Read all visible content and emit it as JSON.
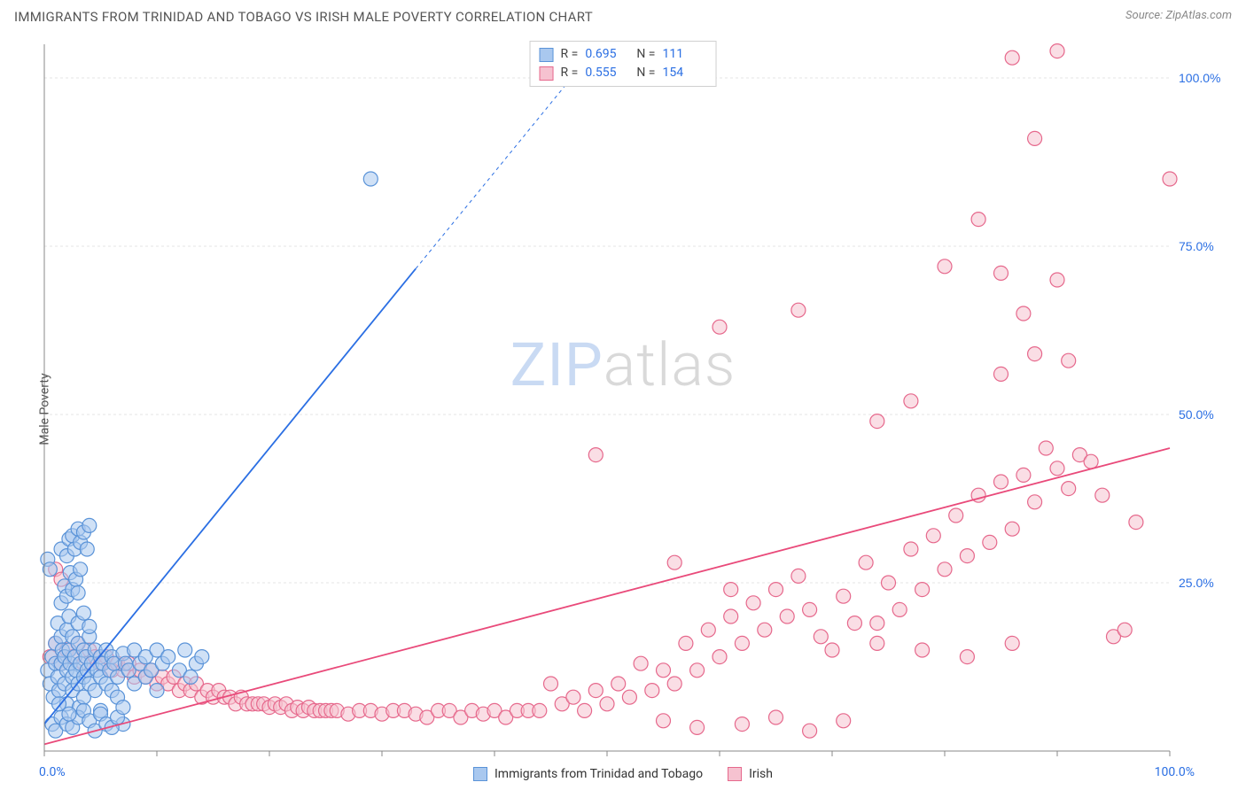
{
  "header": {
    "title": "IMMIGRANTS FROM TRINIDAD AND TOBAGO VS IRISH MALE POVERTY CORRELATION CHART",
    "source_label": "Source: ",
    "source_name": "ZipAtlas.com"
  },
  "watermark": {
    "zip": "ZIP",
    "atlas": "atlas"
  },
  "chart": {
    "type": "scatter",
    "xlim": [
      0,
      100
    ],
    "ylim": [
      0,
      105
    ],
    "xtick_positions": [
      0,
      10,
      20,
      30,
      40,
      50,
      60,
      70,
      80,
      90,
      100
    ],
    "ytick_positions": [
      0,
      25,
      50,
      75,
      100
    ],
    "ytick_labels": [
      "",
      "25.0%",
      "50.0%",
      "75.0%",
      "100.0%"
    ],
    "x_label_min": "0.0%",
    "x_label_max": "100.0%",
    "y_axis_label": "Male Poverty",
    "background_color": "#ffffff",
    "grid_color": "#e4e4e4",
    "grid_dash": "3,3",
    "axis_line_color": "#888888",
    "marker_radius": 8,
    "marker_stroke_width": 1.2,
    "series": [
      {
        "id": "trinidad",
        "name": "Immigrants from Trinidad and Tobago",
        "fill_color": "#a9c8ef",
        "fill_opacity": 0.55,
        "stroke_color": "#5a93d8",
        "r_value": "0.695",
        "n_value": "111",
        "trend": {
          "slope": 2.05,
          "intercept": 4,
          "solid_xmax": 33,
          "dash_xmax": 48,
          "color": "#2b6fe3",
          "width": 1.8
        },
        "points": [
          [
            0.3,
            12
          ],
          [
            0.5,
            10
          ],
          [
            0.7,
            14
          ],
          [
            0.8,
            8
          ],
          [
            1,
            13
          ],
          [
            1,
            16
          ],
          [
            1.2,
            11
          ],
          [
            1.2,
            19
          ],
          [
            1.3,
            9
          ],
          [
            1.5,
            13
          ],
          [
            1.5,
            17
          ],
          [
            1.5,
            22
          ],
          [
            1.6,
            15
          ],
          [
            1.8,
            10
          ],
          [
            1.8,
            14
          ],
          [
            2,
            12
          ],
          [
            2,
            18
          ],
          [
            2,
            7
          ],
          [
            2.2,
            15
          ],
          [
            2.2,
            20
          ],
          [
            2.3,
            13
          ],
          [
            2.5,
            11
          ],
          [
            2.5,
            17
          ],
          [
            2.5,
            9
          ],
          [
            2.7,
            14
          ],
          [
            2.8,
            12
          ],
          [
            3,
            16
          ],
          [
            3,
            10
          ],
          [
            3,
            19
          ],
          [
            3.1,
            6.5
          ],
          [
            3.2,
            13
          ],
          [
            3.5,
            15
          ],
          [
            3.5,
            11
          ],
          [
            3.5,
            8
          ],
          [
            3.7,
            14
          ],
          [
            3.8,
            12
          ],
          [
            4,
            17
          ],
          [
            4,
            10
          ],
          [
            4.2,
            13
          ],
          [
            4.5,
            15
          ],
          [
            4.5,
            9
          ],
          [
            4.7,
            12
          ],
          [
            5,
            14
          ],
          [
            5,
            11
          ],
          [
            5,
            6
          ],
          [
            5.2,
            13
          ],
          [
            5.5,
            15
          ],
          [
            5.5,
            10
          ],
          [
            5.8,
            12
          ],
          [
            6,
            14
          ],
          [
            6,
            9
          ],
          [
            6.2,
            13
          ],
          [
            6.5,
            11
          ],
          [
            6.5,
            8
          ],
          [
            7,
            14.5
          ],
          [
            7,
            4
          ],
          [
            7.2,
            13
          ],
          [
            7.5,
            12
          ],
          [
            8,
            15
          ],
          [
            8,
            10
          ],
          [
            8.5,
            13
          ],
          [
            9,
            14
          ],
          [
            9,
            11
          ],
          [
            9.5,
            12
          ],
          [
            10,
            15
          ],
          [
            10,
            9
          ],
          [
            10.5,
            13
          ],
          [
            11,
            14
          ],
          [
            12,
            12
          ],
          [
            12.5,
            15
          ],
          [
            13,
            11
          ],
          [
            13.5,
            13
          ],
          [
            14,
            14
          ],
          [
            1.8,
            24.5
          ],
          [
            2,
            23
          ],
          [
            2.3,
            26.5
          ],
          [
            2.5,
            24
          ],
          [
            2.8,
            25.5
          ],
          [
            3,
            23.5
          ],
          [
            3.2,
            27
          ],
          [
            1.5,
            30
          ],
          [
            2,
            29
          ],
          [
            2.2,
            31.5
          ],
          [
            2.5,
            32
          ],
          [
            2.7,
            30
          ],
          [
            3,
            33
          ],
          [
            3.2,
            31
          ],
          [
            3.5,
            32.5
          ],
          [
            3.8,
            30
          ],
          [
            4,
            33.5
          ],
          [
            0.7,
            4
          ],
          [
            1,
            3
          ],
          [
            1.5,
            5
          ],
          [
            2,
            4
          ],
          [
            2.5,
            3.5
          ],
          [
            3,
            5
          ],
          [
            3.5,
            6
          ],
          [
            4,
            4.5
          ],
          [
            4.5,
            3
          ],
          [
            5,
            5.5
          ],
          [
            5.5,
            4
          ],
          [
            6,
            3.5
          ],
          [
            6.5,
            5
          ],
          [
            7,
            6.5
          ],
          [
            0.3,
            28.5
          ],
          [
            0.5,
            27
          ],
          [
            1.3,
            7
          ],
          [
            2.2,
            5.5
          ],
          [
            3.5,
            20.5
          ],
          [
            4,
            18.5
          ],
          [
            29,
            85
          ]
        ]
      },
      {
        "id": "irish",
        "name": "Irish",
        "fill_color": "#f6c2d0",
        "fill_opacity": 0.55,
        "stroke_color": "#e6688c",
        "r_value": "0.555",
        "n_value": "154",
        "trend": {
          "slope": 0.44,
          "intercept": 1,
          "solid_xmax": 100,
          "dash_xmax": 100,
          "color": "#e94a7a",
          "width": 1.8
        },
        "points": [
          [
            0.5,
            14
          ],
          [
            1,
            16
          ],
          [
            1.5,
            13
          ],
          [
            2,
            15
          ],
          [
            2.5,
            14
          ],
          [
            3,
            16
          ],
          [
            3.5,
            13
          ],
          [
            4,
            15
          ],
          [
            4.5,
            14
          ],
          [
            5,
            13
          ],
          [
            5.5,
            14
          ],
          [
            6,
            12
          ],
          [
            6.5,
            13
          ],
          [
            7,
            12
          ],
          [
            7.5,
            13
          ],
          [
            8,
            11
          ],
          [
            8.5,
            12
          ],
          [
            9,
            11
          ],
          [
            9.5,
            12
          ],
          [
            10,
            10
          ],
          [
            10.5,
            11
          ],
          [
            11,
            10
          ],
          [
            11.5,
            11
          ],
          [
            12,
            9
          ],
          [
            12.5,
            10
          ],
          [
            13,
            9
          ],
          [
            13.5,
            10
          ],
          [
            14,
            8
          ],
          [
            14.5,
            9
          ],
          [
            15,
            8
          ],
          [
            15.5,
            9
          ],
          [
            16,
            8
          ],
          [
            16.5,
            8
          ],
          [
            17,
            7
          ],
          [
            17.5,
            8
          ],
          [
            18,
            7
          ],
          [
            18.5,
            7
          ],
          [
            19,
            7
          ],
          [
            19.5,
            7
          ],
          [
            20,
            6.5
          ],
          [
            20.5,
            7
          ],
          [
            21,
            6.5
          ],
          [
            21.5,
            7
          ],
          [
            22,
            6
          ],
          [
            22.5,
            6.5
          ],
          [
            23,
            6
          ],
          [
            23.5,
            6.5
          ],
          [
            24,
            6
          ],
          [
            24.5,
            6
          ],
          [
            25,
            6
          ],
          [
            25.5,
            6
          ],
          [
            26,
            6
          ],
          [
            27,
            5.5
          ],
          [
            28,
            6
          ],
          [
            29,
            6
          ],
          [
            30,
            5.5
          ],
          [
            31,
            6
          ],
          [
            32,
            6
          ],
          [
            33,
            5.5
          ],
          [
            34,
            5
          ],
          [
            35,
            6
          ],
          [
            36,
            6
          ],
          [
            37,
            5
          ],
          [
            38,
            6
          ],
          [
            39,
            5.5
          ],
          [
            40,
            6
          ],
          [
            41,
            5
          ],
          [
            42,
            6
          ],
          [
            43,
            6
          ],
          [
            44,
            6
          ],
          [
            45,
            10
          ],
          [
            46,
            7
          ],
          [
            47,
            8
          ],
          [
            48,
            6
          ],
          [
            49,
            9
          ],
          [
            50,
            7
          ],
          [
            51,
            10
          ],
          [
            52,
            8
          ],
          [
            53,
            13
          ],
          [
            54,
            9
          ],
          [
            55,
            12
          ],
          [
            56,
            10
          ],
          [
            57,
            16
          ],
          [
            58,
            12
          ],
          [
            59,
            18
          ],
          [
            60,
            14
          ],
          [
            61,
            20
          ],
          [
            62,
            16
          ],
          [
            63,
            22
          ],
          [
            64,
            18
          ],
          [
            65,
            24
          ],
          [
            66,
            20
          ],
          [
            67,
            26
          ],
          [
            68,
            21
          ],
          [
            69,
            17
          ],
          [
            70,
            15
          ],
          [
            71,
            23
          ],
          [
            72,
            19
          ],
          [
            73,
            28
          ],
          [
            55,
            4.5
          ],
          [
            58,
            3.5
          ],
          [
            62,
            4
          ],
          [
            65,
            5
          ],
          [
            68,
            3
          ],
          [
            71,
            4.5
          ],
          [
            74,
            19
          ],
          [
            75,
            25
          ],
          [
            76,
            21
          ],
          [
            77,
            30
          ],
          [
            78,
            24
          ],
          [
            79,
            32
          ],
          [
            80,
            27
          ],
          [
            81,
            35
          ],
          [
            82,
            29
          ],
          [
            83,
            38
          ],
          [
            84,
            31
          ],
          [
            85,
            40
          ],
          [
            86,
            33
          ],
          [
            87,
            41
          ],
          [
            88,
            37
          ],
          [
            89,
            45
          ],
          [
            90,
            42
          ],
          [
            91,
            39
          ],
          [
            92,
            44
          ],
          [
            93,
            43
          ],
          [
            94,
            38
          ],
          [
            95,
            17
          ],
          [
            96,
            18
          ],
          [
            97,
            34
          ],
          [
            49,
            44
          ],
          [
            56,
            28
          ],
          [
            61,
            24
          ],
          [
            74,
            49
          ],
          [
            77,
            52
          ],
          [
            85,
            56
          ],
          [
            88,
            59
          ],
          [
            91,
            58
          ],
          [
            87,
            65
          ],
          [
            60,
            63
          ],
          [
            67,
            65.5
          ],
          [
            80,
            72
          ],
          [
            85,
            71
          ],
          [
            90,
            70
          ],
          [
            83,
            79
          ],
          [
            88,
            91
          ],
          [
            86,
            103
          ],
          [
            90,
            104
          ],
          [
            100,
            85
          ],
          [
            1,
            27
          ],
          [
            1.5,
            25.5
          ],
          [
            74,
            16
          ],
          [
            78,
            15
          ],
          [
            82,
            14
          ],
          [
            86,
            16
          ]
        ]
      }
    ]
  },
  "legend_labels": {
    "r_prefix": "R =",
    "n_prefix": "N ="
  }
}
